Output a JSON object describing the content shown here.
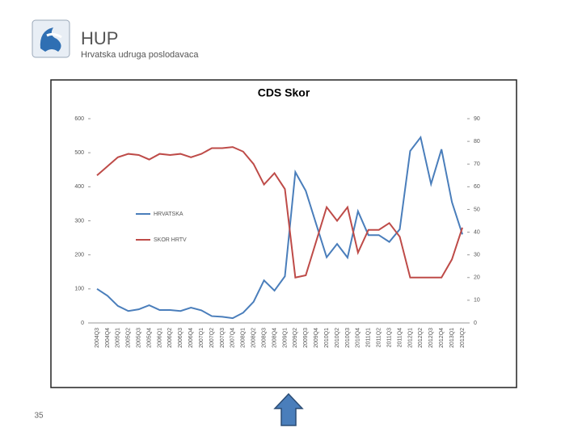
{
  "header": {
    "title": "HUP",
    "subtitle": "Hrvatska udruga poslodavaca"
  },
  "page_number": "35",
  "chart_data": {
    "type": "line",
    "title": "CDS Skor",
    "categories": [
      "2004Q3",
      "2004Q4",
      "2005Q1",
      "2005Q2",
      "2005Q3",
      "2005Q4",
      "2006Q1",
      "2006Q2",
      "2006Q3",
      "2006Q4",
      "2007Q1",
      "2007Q2",
      "2007Q3",
      "2007Q4",
      "2008Q1",
      "2008Q2",
      "2008Q3",
      "2008Q4",
      "2009Q1",
      "2009Q2",
      "2009Q3",
      "2009Q4",
      "2010Q1",
      "2010Q2",
      "2010Q3",
      "2010Q4",
      "2011Q1",
      "2011Q2",
      "2011Q3",
      "2011Q4",
      "2012Q1",
      "2012Q2",
      "2012Q3",
      "2012Q4",
      "2013Q1",
      "2013Q2"
    ],
    "series": [
      {
        "name": "HRVATSKA",
        "color": "#4a7ebb",
        "values": [
          100,
          80,
          50,
          35,
          40,
          52,
          38,
          38,
          35,
          45,
          37,
          20,
          18,
          14,
          30,
          62,
          125,
          95,
          137,
          443,
          388,
          290,
          193,
          232,
          192,
          328,
          258,
          258,
          238,
          275,
          505,
          545,
          408,
          510,
          355,
          260
        ]
      },
      {
        "name": "SKOR HRTV",
        "color": "#be4b48",
        "axis": "y2",
        "values": [
          65,
          69,
          73,
          74.5,
          74,
          72,
          74.5,
          74,
          74.5,
          73,
          74.5,
          77,
          77,
          77.5,
          75.5,
          70,
          61,
          66,
          59,
          20,
          21,
          36,
          51,
          45,
          51,
          31,
          41,
          41,
          44,
          38,
          20,
          20,
          20,
          20,
          28,
          42
        ]
      }
    ],
    "ylim": [
      0,
      600
    ],
    "yticks": [
      0,
      100,
      200,
      300,
      400,
      500,
      600
    ],
    "y2lim": [
      0,
      90
    ],
    "y2ticks": [
      0,
      10,
      20,
      30,
      40,
      50,
      60,
      70,
      80,
      90
    ],
    "grid": false
  }
}
